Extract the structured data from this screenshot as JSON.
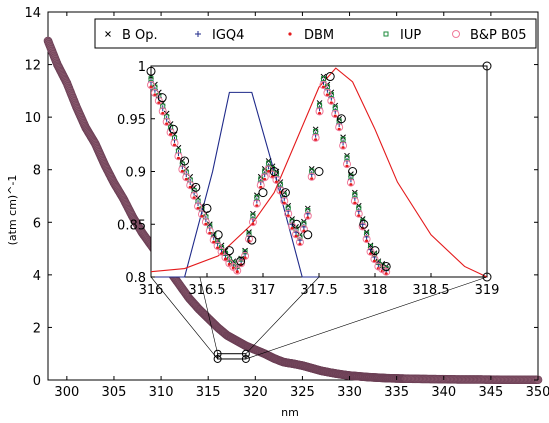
{
  "chart_data": [
    {
      "type": "scatter",
      "title": "",
      "xlabel": "nm",
      "ylabel": "(atm cm)^-1",
      "xlim": [
        298,
        350
      ],
      "ylim": [
        0,
        14
      ],
      "xticks": [
        300,
        305,
        310,
        315,
        320,
        325,
        330,
        335,
        340,
        345,
        350
      ],
      "yticks": [
        0,
        2,
        4,
        6,
        8,
        10,
        12,
        14
      ],
      "grid": false,
      "series": [
        {
          "name": "",
          "color": "#8a5a6e",
          "x": [
            298,
            299,
            300,
            301,
            302,
            303,
            304,
            305,
            306,
            307,
            308,
            309,
            310,
            311,
            312,
            313,
            314,
            315,
            316,
            317,
            318,
            319,
            320,
            321,
            322,
            323,
            324,
            325,
            326,
            327,
            328,
            329,
            330,
            331,
            332,
            333,
            334,
            335,
            336,
            338,
            340,
            342,
            344,
            346,
            348,
            350
          ],
          "y": [
            12.9,
            12.0,
            11.3,
            10.4,
            9.6,
            9.0,
            8.2,
            7.5,
            6.9,
            6.2,
            5.6,
            5.1,
            4.6,
            4.1,
            3.6,
            3.1,
            2.7,
            2.35,
            2.0,
            1.7,
            1.5,
            1.3,
            1.15,
            1.0,
            0.82,
            0.68,
            0.62,
            0.55,
            0.45,
            0.35,
            0.28,
            0.22,
            0.17,
            0.14,
            0.11,
            0.09,
            0.07,
            0.06,
            0.05,
            0.04,
            0.03,
            0.02,
            0.02,
            0.01,
            0.01,
            0.01
          ]
        }
      ],
      "annotations": [
        {
          "type": "zoom-box",
          "x": [
            316,
            319
          ],
          "y": [
            0.8,
            1.0
          ]
        }
      ]
    },
    {
      "type": "scatter",
      "title": "",
      "xlabel": "",
      "ylabel": "",
      "xlim": [
        316,
        319
      ],
      "ylim": [
        0.8,
        1.0
      ],
      "xticks": [
        316,
        316.5,
        317,
        317.5,
        318,
        318.5,
        319
      ],
      "xtick_labels": [
        "316",
        "316.5",
        "317",
        "317.5",
        "318",
        "318.5",
        "319"
      ],
      "yticks": [
        0.8,
        0.85,
        0.9,
        0.95,
        1.0
      ],
      "ytick_labels": [
        "0.8",
        "0.85",
        "0.9",
        "0.95",
        "1"
      ],
      "grid": false,
      "legend_position": "top",
      "series": [
        {
          "name": "B Op.",
          "marker": "x",
          "color": "#000000",
          "x": [
            316.0,
            316.07,
            316.14,
            316.21,
            316.28,
            316.35,
            316.42,
            316.49,
            316.56,
            316.63,
            316.7,
            316.77,
            316.84,
            316.91,
            316.98,
            317.05,
            317.12,
            317.19,
            317.26,
            317.33,
            317.4,
            317.47,
            317.54,
            317.61,
            317.68,
            317.75,
            317.82,
            317.89,
            317.96,
            318.03,
            318.1
          ],
          "y": [
            0.99,
            0.975,
            0.955,
            0.935,
            0.91,
            0.895,
            0.875,
            0.86,
            0.84,
            0.83,
            0.82,
            0.81,
            0.825,
            0.86,
            0.895,
            0.91,
            0.9,
            0.88,
            0.855,
            0.84,
            0.865,
            0.94,
            0.99,
            0.975,
            0.95,
            0.915,
            0.88,
            0.855,
            0.83,
            0.815,
            0.81
          ]
        },
        {
          "name": "IGQ4",
          "marker": "+",
          "color": "#1f2a8a",
          "x": [
            316.0,
            316.07,
            316.14,
            316.21,
            316.28,
            316.35,
            316.42,
            316.49,
            316.56,
            316.63,
            316.7,
            316.77,
            316.84,
            316.91,
            316.98,
            317.05,
            317.12,
            317.19,
            317.26,
            317.33,
            317.4,
            317.47,
            317.54,
            317.61,
            317.68,
            317.75,
            317.82,
            317.89,
            317.96,
            318.03,
            318.1
          ],
          "y": [
            0.985,
            0.97,
            0.95,
            0.93,
            0.905,
            0.89,
            0.87,
            0.855,
            0.838,
            0.826,
            0.815,
            0.808,
            0.822,
            0.855,
            0.89,
            0.905,
            0.895,
            0.875,
            0.85,
            0.835,
            0.86,
            0.935,
            0.985,
            0.97,
            0.945,
            0.91,
            0.875,
            0.85,
            0.826,
            0.812,
            0.806
          ]
        },
        {
          "name": "DBM",
          "marker": "dot",
          "color": "#e41a1c",
          "x": [
            316.0,
            316.07,
            316.14,
            316.21,
            316.28,
            316.35,
            316.42,
            316.49,
            316.56,
            316.63,
            316.7,
            316.77,
            316.84,
            316.91,
            316.98,
            317.05,
            317.12,
            317.19,
            317.26,
            317.33,
            317.4,
            317.47,
            317.54,
            317.61,
            317.68,
            317.75,
            317.82,
            317.89,
            317.96,
            318.03,
            318.1
          ],
          "y": [
            0.98,
            0.965,
            0.945,
            0.925,
            0.9,
            0.885,
            0.865,
            0.85,
            0.833,
            0.822,
            0.812,
            0.805,
            0.818,
            0.85,
            0.885,
            0.9,
            0.89,
            0.87,
            0.846,
            0.831,
            0.856,
            0.93,
            0.98,
            0.965,
            0.94,
            0.905,
            0.87,
            0.846,
            0.822,
            0.808,
            0.803
          ]
        },
        {
          "name": "IUP",
          "marker": "square",
          "color": "#1b8a3a",
          "x": [
            316.0,
            316.07,
            316.14,
            316.21,
            316.28,
            316.35,
            316.42,
            316.49,
            316.56,
            316.63,
            316.7,
            316.77,
            316.84,
            316.91,
            316.98,
            317.05,
            317.12,
            317.19,
            317.26,
            317.33,
            317.4,
            317.47,
            317.54,
            317.61,
            317.68,
            317.75,
            317.82,
            317.89,
            317.96,
            318.03,
            318.1
          ],
          "y": [
            0.988,
            0.972,
            0.952,
            0.932,
            0.907,
            0.892,
            0.872,
            0.857,
            0.84,
            0.828,
            0.817,
            0.81,
            0.824,
            0.858,
            0.893,
            0.908,
            0.898,
            0.878,
            0.853,
            0.838,
            0.863,
            0.938,
            0.988,
            0.973,
            0.948,
            0.913,
            0.878,
            0.853,
            0.829,
            0.814,
            0.808
          ]
        },
        {
          "name": "B&P B05",
          "marker": "circle",
          "color": "#f07a9a",
          "x": [
            316.0,
            316.07,
            316.14,
            316.21,
            316.28,
            316.35,
            316.42,
            316.49,
            316.56,
            316.63,
            316.7,
            316.77,
            316.84,
            316.91,
            316.98,
            317.05,
            317.12,
            317.19,
            317.26,
            317.33,
            317.4,
            317.47,
            317.54,
            317.61,
            317.68,
            317.75,
            317.82,
            317.89,
            317.96,
            318.03,
            318.1
          ],
          "y": [
            0.982,
            0.967,
            0.947,
            0.927,
            0.902,
            0.887,
            0.867,
            0.852,
            0.835,
            0.824,
            0.813,
            0.806,
            0.82,
            0.852,
            0.887,
            0.902,
            0.892,
            0.872,
            0.848,
            0.833,
            0.858,
            0.932,
            0.982,
            0.967,
            0.942,
            0.907,
            0.872,
            0.848,
            0.824,
            0.81,
            0.805
          ]
        },
        {
          "name": "",
          "marker": "open-circle",
          "color": "#000000",
          "x": [
            316.0,
            316.1,
            316.2,
            316.3,
            316.4,
            316.5,
            316.6,
            316.7,
            316.8,
            316.9,
            317.0,
            317.1,
            317.2,
            317.3,
            317.4,
            317.5,
            317.6,
            317.7,
            317.8,
            317.9,
            318.0,
            318.1
          ],
          "y": [
            0.995,
            0.97,
            0.94,
            0.91,
            0.885,
            0.865,
            0.84,
            0.825,
            0.815,
            0.835,
            0.88,
            0.9,
            0.88,
            0.85,
            0.84,
            0.9,
            0.99,
            0.95,
            0.9,
            0.85,
            0.825,
            0.81
          ]
        },
        {
          "name": "",
          "type": "line",
          "color": "#1f2a8a",
          "x": [
            316.0,
            316.3,
            316.55,
            316.7,
            316.9,
            317.1,
            317.35,
            317.5
          ],
          "y": [
            0.8,
            0.8,
            0.9,
            0.975,
            0.975,
            0.9,
            0.8,
            0.8
          ]
        },
        {
          "name": "",
          "type": "line",
          "color": "#e41a1c",
          "x": [
            316.0,
            316.3,
            316.6,
            316.9,
            317.1,
            317.3,
            317.5,
            317.65,
            317.8,
            318.0,
            318.2,
            318.5,
            318.8,
            319.0
          ],
          "y": [
            0.805,
            0.808,
            0.82,
            0.85,
            0.88,
            0.93,
            0.98,
            0.998,
            0.985,
            0.94,
            0.89,
            0.84,
            0.81,
            0.8
          ]
        },
        {
          "name": "",
          "marker": "open-circle",
          "color": "#000000",
          "x": [
            319.0,
            319.0
          ],
          "y": [
            1.0,
            0.8
          ]
        }
      ]
    }
  ]
}
